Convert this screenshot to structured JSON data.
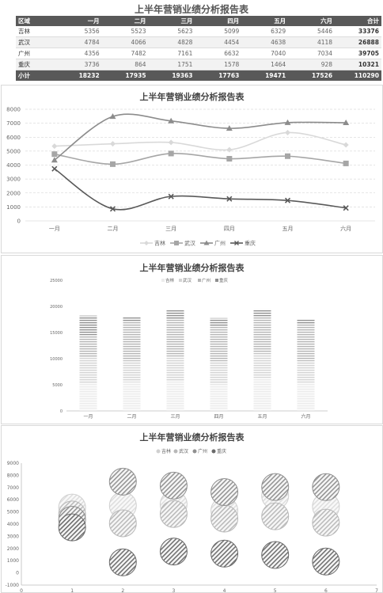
{
  "page_title": "上半年营销业绩分析报告表",
  "table": {
    "headers": [
      "区域",
      "一月",
      "二月",
      "三月",
      "四月",
      "五月",
      "六月",
      "合计"
    ],
    "rows": [
      [
        "吉林",
        "5356",
        "5523",
        "5623",
        "5099",
        "6329",
        "5446",
        "33376"
      ],
      [
        "武汉",
        "4784",
        "4066",
        "4828",
        "4454",
        "4638",
        "4118",
        "26888"
      ],
      [
        "广州",
        "4356",
        "7482",
        "7161",
        "6632",
        "7040",
        "7034",
        "39705"
      ],
      [
        "重庆",
        "3736",
        "864",
        "1751",
        "1578",
        "1464",
        "928",
        "10321"
      ]
    ],
    "footer": [
      "小计",
      "18232",
      "17935",
      "19363",
      "17763",
      "19471",
      "17526",
      "110290"
    ]
  },
  "colors": {
    "header_bg": "#595959",
    "jilin": "#d9d9d9",
    "wuhan": "#a6a6a6",
    "guangzhou": "#8c8c8c",
    "chongqing": "#595959"
  },
  "chart_data": [
    {
      "type": "line",
      "title": "上半年营销业绩分析报告表",
      "categories": [
        "一月",
        "二月",
        "三月",
        "四月",
        "五月",
        "六月"
      ],
      "series": [
        {
          "name": "吉林",
          "values": [
            5356,
            5523,
            5623,
            5099,
            6329,
            5446
          ]
        },
        {
          "name": "武汉",
          "values": [
            4784,
            4066,
            4828,
            4454,
            4638,
            4118
          ]
        },
        {
          "name": "广州",
          "values": [
            4356,
            7482,
            7161,
            6632,
            7040,
            7034
          ]
        },
        {
          "name": "重庆",
          "values": [
            3736,
            864,
            1751,
            1578,
            1464,
            928
          ]
        }
      ],
      "ylim": [
        0,
        8000
      ],
      "yticks": [
        0,
        1000,
        2000,
        3000,
        4000,
        5000,
        6000,
        7000,
        8000
      ],
      "grid": true,
      "legend": "bottom"
    },
    {
      "type": "bar",
      "stacked": true,
      "title": "上半年营销业绩分析报告表",
      "categories": [
        "一月",
        "二月",
        "三月",
        "四月",
        "五月",
        "六月"
      ],
      "series": [
        {
          "name": "吉林",
          "values": [
            5356,
            5523,
            5623,
            5099,
            6329,
            5446
          ]
        },
        {
          "name": "武汉",
          "values": [
            4784,
            4066,
            4828,
            4454,
            4638,
            4118
          ]
        },
        {
          "name": "广州",
          "values": [
            4356,
            7482,
            7161,
            6632,
            7040,
            7034
          ]
        },
        {
          "name": "重庆",
          "values": [
            3736,
            864,
            1751,
            1578,
            1464,
            928
          ]
        }
      ],
      "ylim": [
        0,
        25000
      ],
      "yticks": [
        0,
        5000,
        10000,
        15000,
        20000,
        25000
      ],
      "grid": false,
      "legend": "top"
    },
    {
      "type": "scatter",
      "subtype": "bubble",
      "title": "上半年营销业绩分析报告表",
      "x": [
        1,
        2,
        3,
        4,
        5,
        6
      ],
      "series": [
        {
          "name": "吉林",
          "values": [
            5356,
            5523,
            5623,
            5099,
            6329,
            5446
          ]
        },
        {
          "name": "武汉",
          "values": [
            4784,
            4066,
            4828,
            4454,
            4638,
            4118
          ]
        },
        {
          "name": "广州",
          "values": [
            4356,
            7482,
            7161,
            6632,
            7040,
            7034
          ]
        },
        {
          "name": "重庆",
          "values": [
            3736,
            864,
            1751,
            1578,
            1464,
            928
          ]
        }
      ],
      "xlim": [
        0,
        7
      ],
      "xticks": [
        0,
        1,
        2,
        3,
        4,
        5,
        6,
        7
      ],
      "ylim": [
        -1000,
        9000
      ],
      "yticks": [
        -1000,
        0,
        1000,
        2000,
        3000,
        4000,
        5000,
        6000,
        7000,
        8000,
        9000
      ],
      "grid": false,
      "legend": "top"
    }
  ]
}
